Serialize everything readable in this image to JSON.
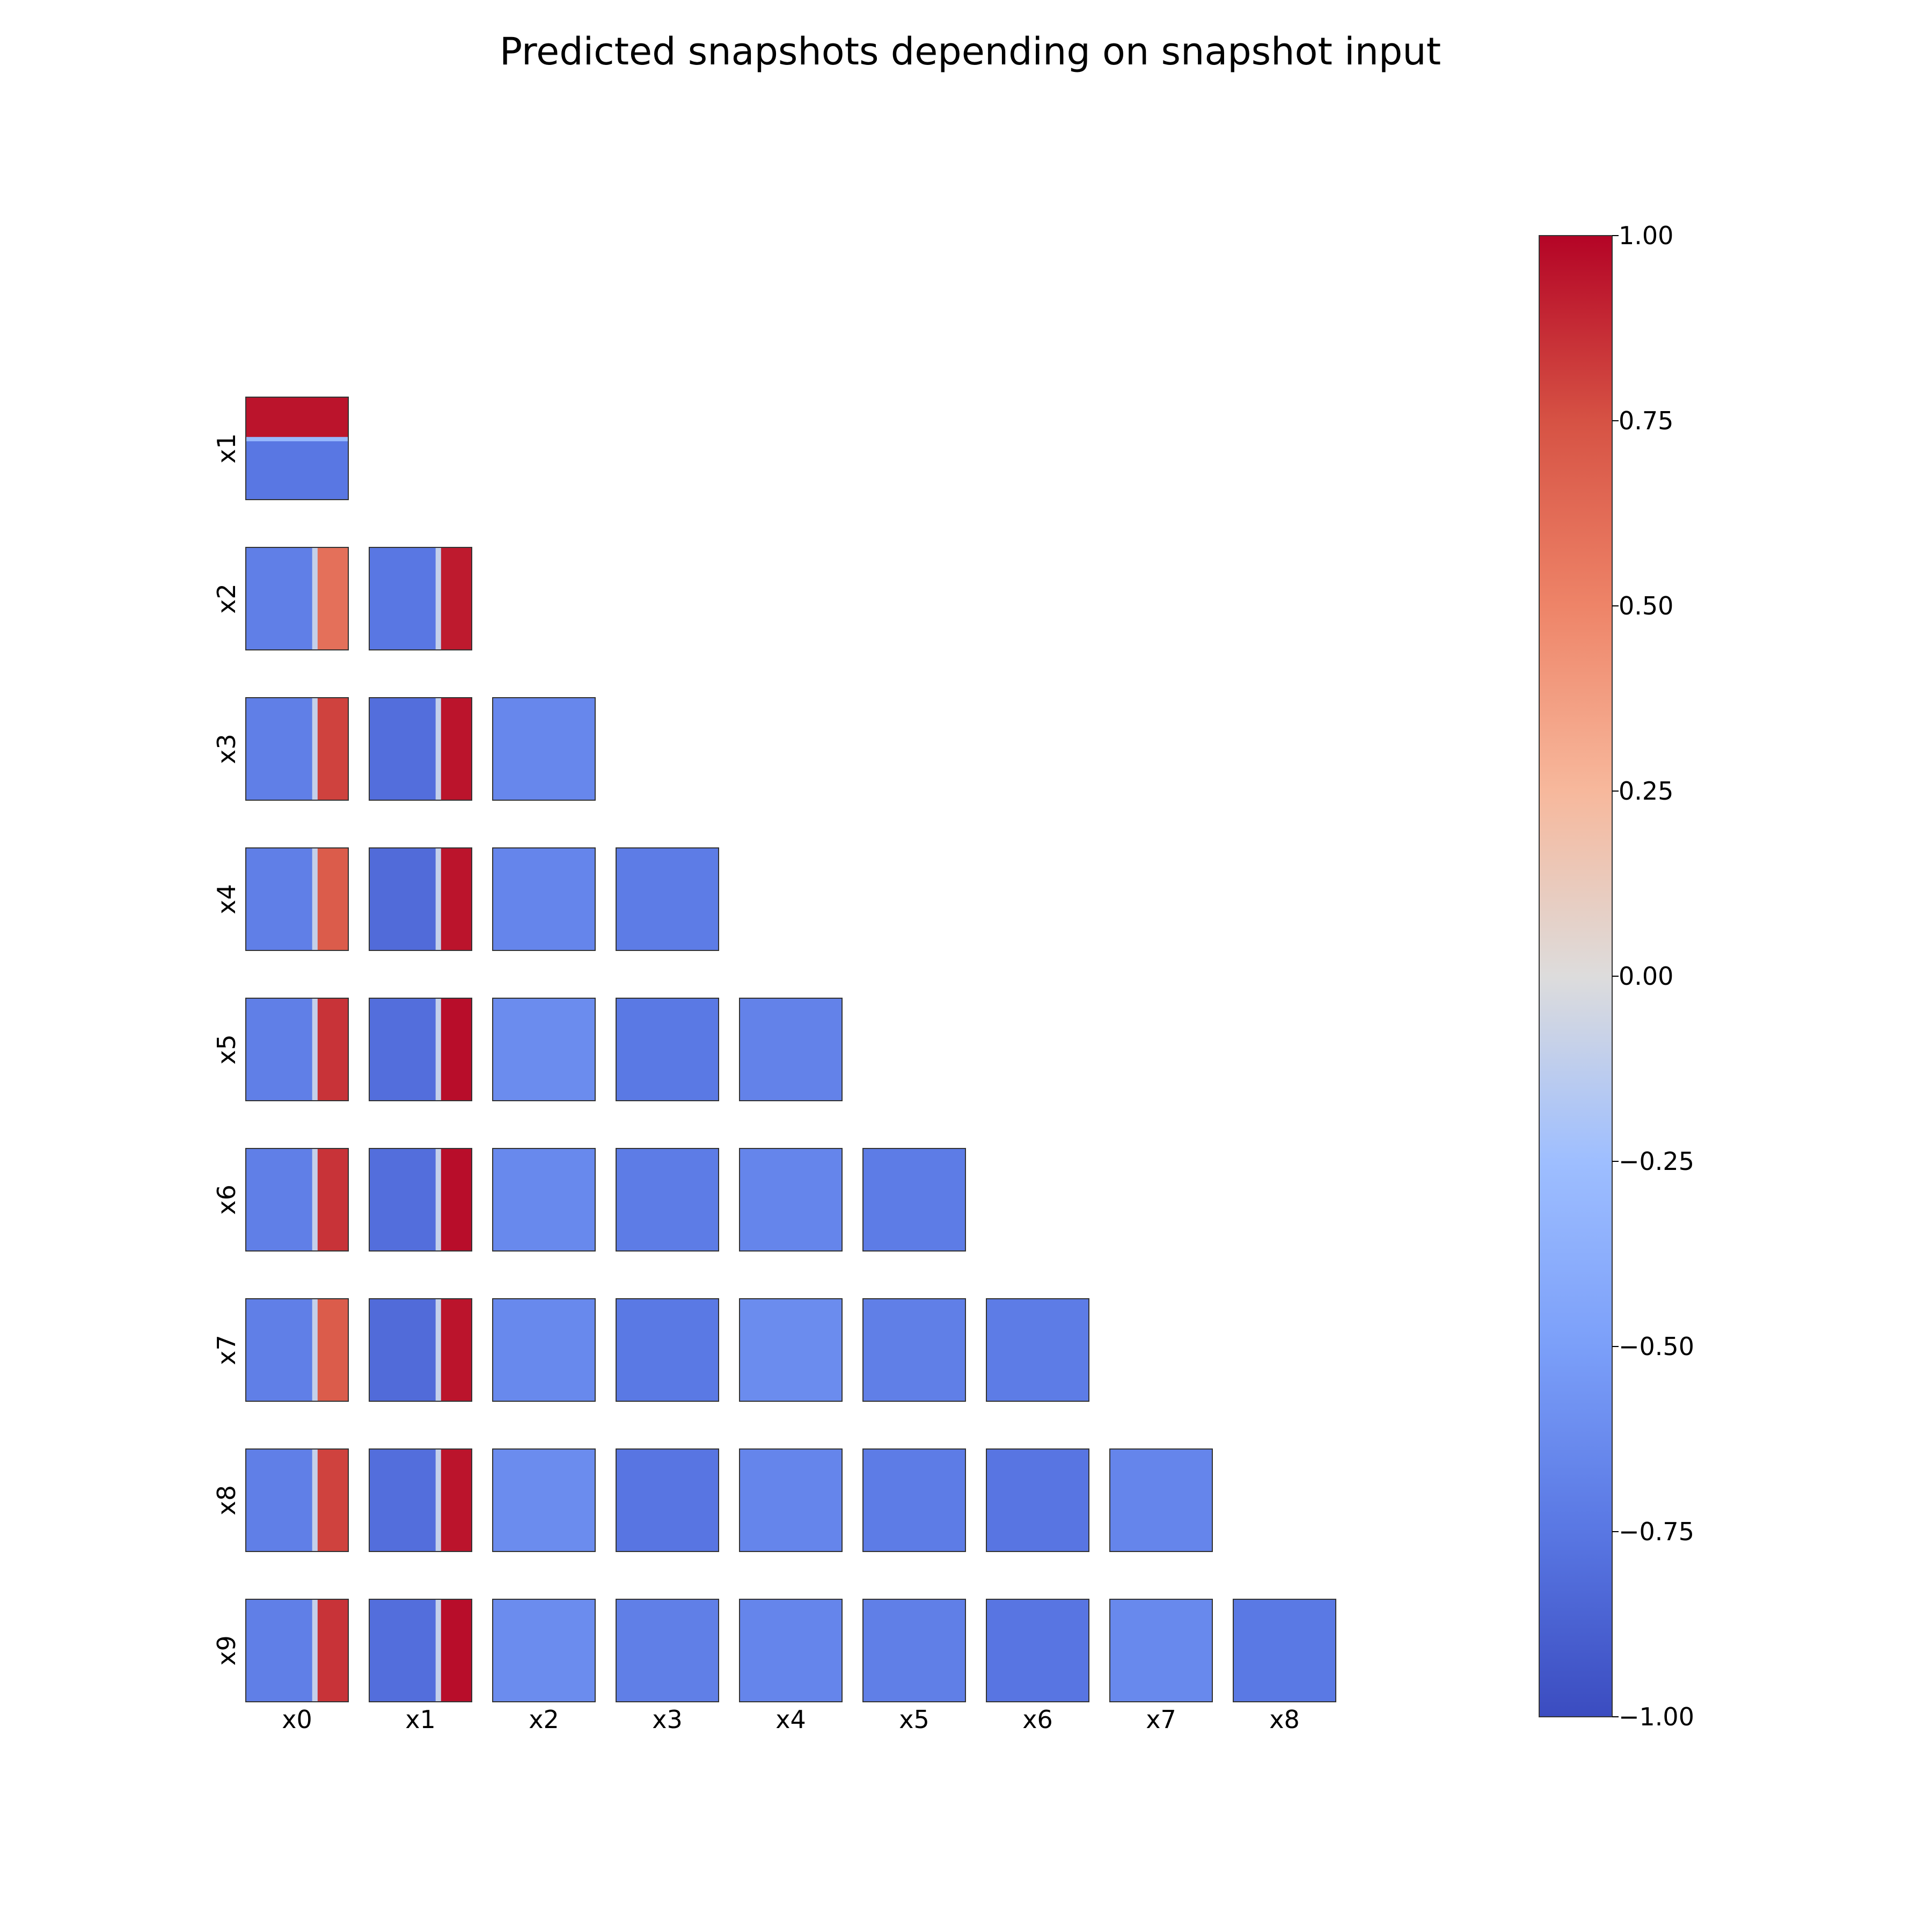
{
  "chart_data": {
    "type": "heatmap",
    "title": "Predicted snapshots depending on snapshot input",
    "x_labels": [
      "x0",
      "x1",
      "x2",
      "x3",
      "x4",
      "x5",
      "x6",
      "x7",
      "x8"
    ],
    "y_labels": [
      "x1",
      "x2",
      "x3",
      "x4",
      "x5",
      "x6",
      "x7",
      "x8",
      "x9"
    ],
    "layout": "lower-triangle",
    "colormap": "coolwarm",
    "colorbar": {
      "vmin": -1.0,
      "vmax": 1.0,
      "ticks": [
        "1.00",
        "0.75",
        "0.50",
        "0.25",
        "0.00",
        "−0.25",
        "−0.50",
        "−0.75",
        "−1.00"
      ],
      "tick_values": [
        1.0,
        0.75,
        0.5,
        0.25,
        0.0,
        -0.25,
        -0.5,
        -0.75,
        -1.0
      ]
    },
    "panel_summary": [
      {
        "row": "x1",
        "col": "x0",
        "pattern": "horizontal-split",
        "upper_value": 0.95,
        "lower_value": -0.75
      },
      {
        "row": "x2",
        "col": "x0",
        "pattern": "vertical-split",
        "left_value": -0.7,
        "right_value": 0.6
      },
      {
        "row": "x2",
        "col": "x1",
        "pattern": "vertical-split",
        "left_value": -0.75,
        "right_value": 0.93
      },
      {
        "row": "x3",
        "col": "x0",
        "pattern": "vertical-split",
        "left_value": -0.7,
        "right_value": 0.8
      },
      {
        "row": "x3",
        "col": "x1",
        "pattern": "vertical-split",
        "left_value": -0.8,
        "right_value": 0.95
      },
      {
        "row": "x3",
        "col": "x2",
        "pattern": "uniform",
        "value": -0.65
      },
      {
        "row": "x4",
        "col": "x0",
        "pattern": "vertical-split",
        "left_value": -0.7,
        "right_value": 0.7
      },
      {
        "row": "x4",
        "col": "x1",
        "pattern": "vertical-split",
        "left_value": -0.82,
        "right_value": 0.95
      },
      {
        "row": "x4",
        "col": "x2",
        "pattern": "uniform",
        "value": -0.66
      },
      {
        "row": "x4",
        "col": "x3",
        "pattern": "uniform",
        "value": -0.72
      },
      {
        "row": "x5",
        "col": "x0",
        "pattern": "vertical-split",
        "left_value": -0.7,
        "right_value": 0.85
      },
      {
        "row": "x5",
        "col": "x1",
        "pattern": "vertical-split",
        "left_value": -0.8,
        "right_value": 0.97
      },
      {
        "row": "x5",
        "col": "x2",
        "pattern": "uniform",
        "value": -0.62
      },
      {
        "row": "x5",
        "col": "x3",
        "pattern": "uniform",
        "value": -0.74
      },
      {
        "row": "x5",
        "col": "x4",
        "pattern": "uniform",
        "value": -0.68
      },
      {
        "row": "x6",
        "col": "x0",
        "pattern": "vertical-split",
        "left_value": -0.7,
        "right_value": 0.85
      },
      {
        "row": "x6",
        "col": "x1",
        "pattern": "vertical-split",
        "left_value": -0.8,
        "right_value": 0.97
      },
      {
        "row": "x6",
        "col": "x2",
        "pattern": "uniform",
        "value": -0.64
      },
      {
        "row": "x6",
        "col": "x3",
        "pattern": "uniform",
        "value": -0.72
      },
      {
        "row": "x6",
        "col": "x4",
        "pattern": "uniform",
        "value": -0.66
      },
      {
        "row": "x6",
        "col": "x5",
        "pattern": "uniform",
        "value": -0.72
      },
      {
        "row": "x7",
        "col": "x0",
        "pattern": "vertical-split",
        "left_value": -0.7,
        "right_value": 0.7
      },
      {
        "row": "x7",
        "col": "x1",
        "pattern": "vertical-split",
        "left_value": -0.82,
        "right_value": 0.95
      },
      {
        "row": "x7",
        "col": "x2",
        "pattern": "uniform",
        "value": -0.64
      },
      {
        "row": "x7",
        "col": "x3",
        "pattern": "uniform",
        "value": -0.74
      },
      {
        "row": "x7",
        "col": "x4",
        "pattern": "uniform",
        "value": -0.62
      },
      {
        "row": "x7",
        "col": "x5",
        "pattern": "uniform",
        "value": -0.7
      },
      {
        "row": "x7",
        "col": "x6",
        "pattern": "uniform",
        "value": -0.72
      },
      {
        "row": "x8",
        "col": "x0",
        "pattern": "vertical-split",
        "left_value": -0.7,
        "right_value": 0.8
      },
      {
        "row": "x8",
        "col": "x1",
        "pattern": "vertical-split",
        "left_value": -0.8,
        "right_value": 0.95
      },
      {
        "row": "x8",
        "col": "x2",
        "pattern": "uniform",
        "value": -0.62
      },
      {
        "row": "x8",
        "col": "x3",
        "pattern": "uniform",
        "value": -0.76
      },
      {
        "row": "x8",
        "col": "x4",
        "pattern": "uniform",
        "value": -0.66
      },
      {
        "row": "x8",
        "col": "x5",
        "pattern": "uniform",
        "value": -0.72
      },
      {
        "row": "x8",
        "col": "x6",
        "pattern": "uniform",
        "value": -0.76
      },
      {
        "row": "x8",
        "col": "x7",
        "pattern": "uniform",
        "value": -0.66
      },
      {
        "row": "x9",
        "col": "x0",
        "pattern": "vertical-split",
        "left_value": -0.7,
        "right_value": 0.85
      },
      {
        "row": "x9",
        "col": "x1",
        "pattern": "vertical-split",
        "left_value": -0.8,
        "right_value": 0.97
      },
      {
        "row": "x9",
        "col": "x2",
        "pattern": "uniform",
        "value": -0.62
      },
      {
        "row": "x9",
        "col": "x3",
        "pattern": "uniform",
        "value": -0.7
      },
      {
        "row": "x9",
        "col": "x4",
        "pattern": "uniform",
        "value": -0.66
      },
      {
        "row": "x9",
        "col": "x5",
        "pattern": "uniform",
        "value": -0.7
      },
      {
        "row": "x9",
        "col": "x6",
        "pattern": "uniform",
        "value": -0.76
      },
      {
        "row": "x9",
        "col": "x7",
        "pattern": "uniform",
        "value": -0.64
      },
      {
        "row": "x9",
        "col": "x8",
        "pattern": "uniform",
        "value": -0.74
      }
    ]
  }
}
